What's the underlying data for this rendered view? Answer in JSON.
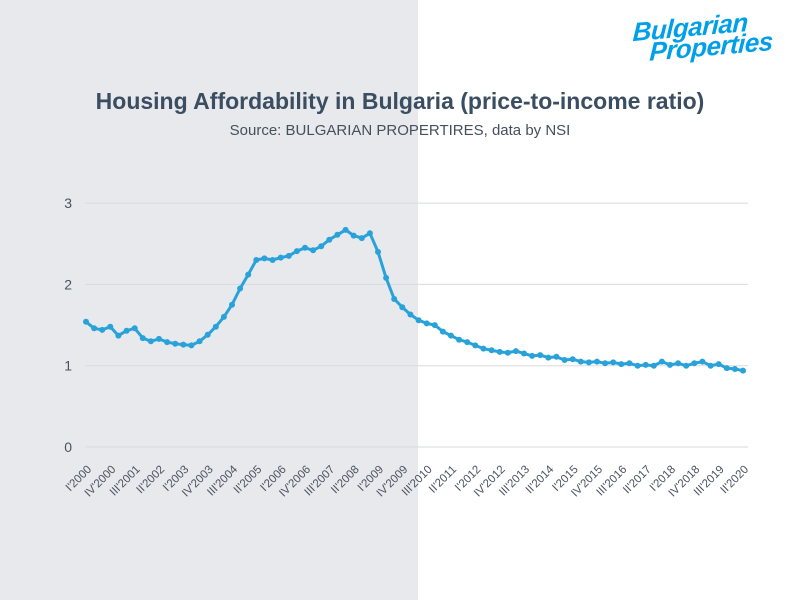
{
  "logo": {
    "line1": "Bulgarian",
    "line2": "Properties",
    "color": "#00a0e8"
  },
  "chart_data": {
    "type": "line",
    "title": "Housing Affordability in Bulgaria (price-to-income ratio)",
    "subtitle": "Source: BULGARIAN PROPERTIRES, data by NSI",
    "x_first": "I'2000",
    "x_last": "II'2020",
    "x_tick_step": 3,
    "x_tick_labels": [
      "I'2000",
      "IV'2000",
      "III'2001",
      "II'2002",
      "I'2003",
      "IV'2003",
      "III'2004",
      "II'2005",
      "I'2006",
      "IV'2006",
      "III'2007",
      "II'2008",
      "I'2009",
      "IV'2009",
      "III'2010",
      "II'2011",
      "I'2012",
      "IV'2012",
      "III'2013",
      "II'2014",
      "I'2015",
      "IV'2015",
      "III'2016",
      "II'2017",
      "I'2018",
      "IV'2018",
      "III'2019",
      "II'2020"
    ],
    "values": [
      1.54,
      1.46,
      1.44,
      1.48,
      1.37,
      1.43,
      1.46,
      1.34,
      1.3,
      1.33,
      1.29,
      1.27,
      1.26,
      1.25,
      1.3,
      1.38,
      1.48,
      1.6,
      1.75,
      1.95,
      2.12,
      2.3,
      2.32,
      2.3,
      2.33,
      2.35,
      2.41,
      2.45,
      2.42,
      2.47,
      2.55,
      2.61,
      2.67,
      2.6,
      2.57,
      2.63,
      2.4,
      2.08,
      1.82,
      1.72,
      1.63,
      1.56,
      1.52,
      1.5,
      1.42,
      1.37,
      1.32,
      1.29,
      1.25,
      1.21,
      1.19,
      1.17,
      1.16,
      1.18,
      1.15,
      1.12,
      1.13,
      1.1,
      1.11,
      1.07,
      1.08,
      1.05,
      1.04,
      1.05,
      1.03,
      1.04,
      1.02,
      1.03,
      1.0,
      1.01,
      1.0,
      1.05,
      1.01,
      1.03,
      1.0,
      1.03,
      1.05,
      1.0,
      1.02,
      0.97,
      0.96,
      0.94
    ],
    "yticks": [
      0,
      1,
      2,
      3
    ],
    "ylim": [
      0,
      3
    ],
    "grid": true,
    "legend": "none",
    "line_color": "#29a2da",
    "grid_color": "#d7dade",
    "axis_label_color": "#4a5260",
    "background_left": "#e7e9ed",
    "background_right": "#ffffff"
  }
}
